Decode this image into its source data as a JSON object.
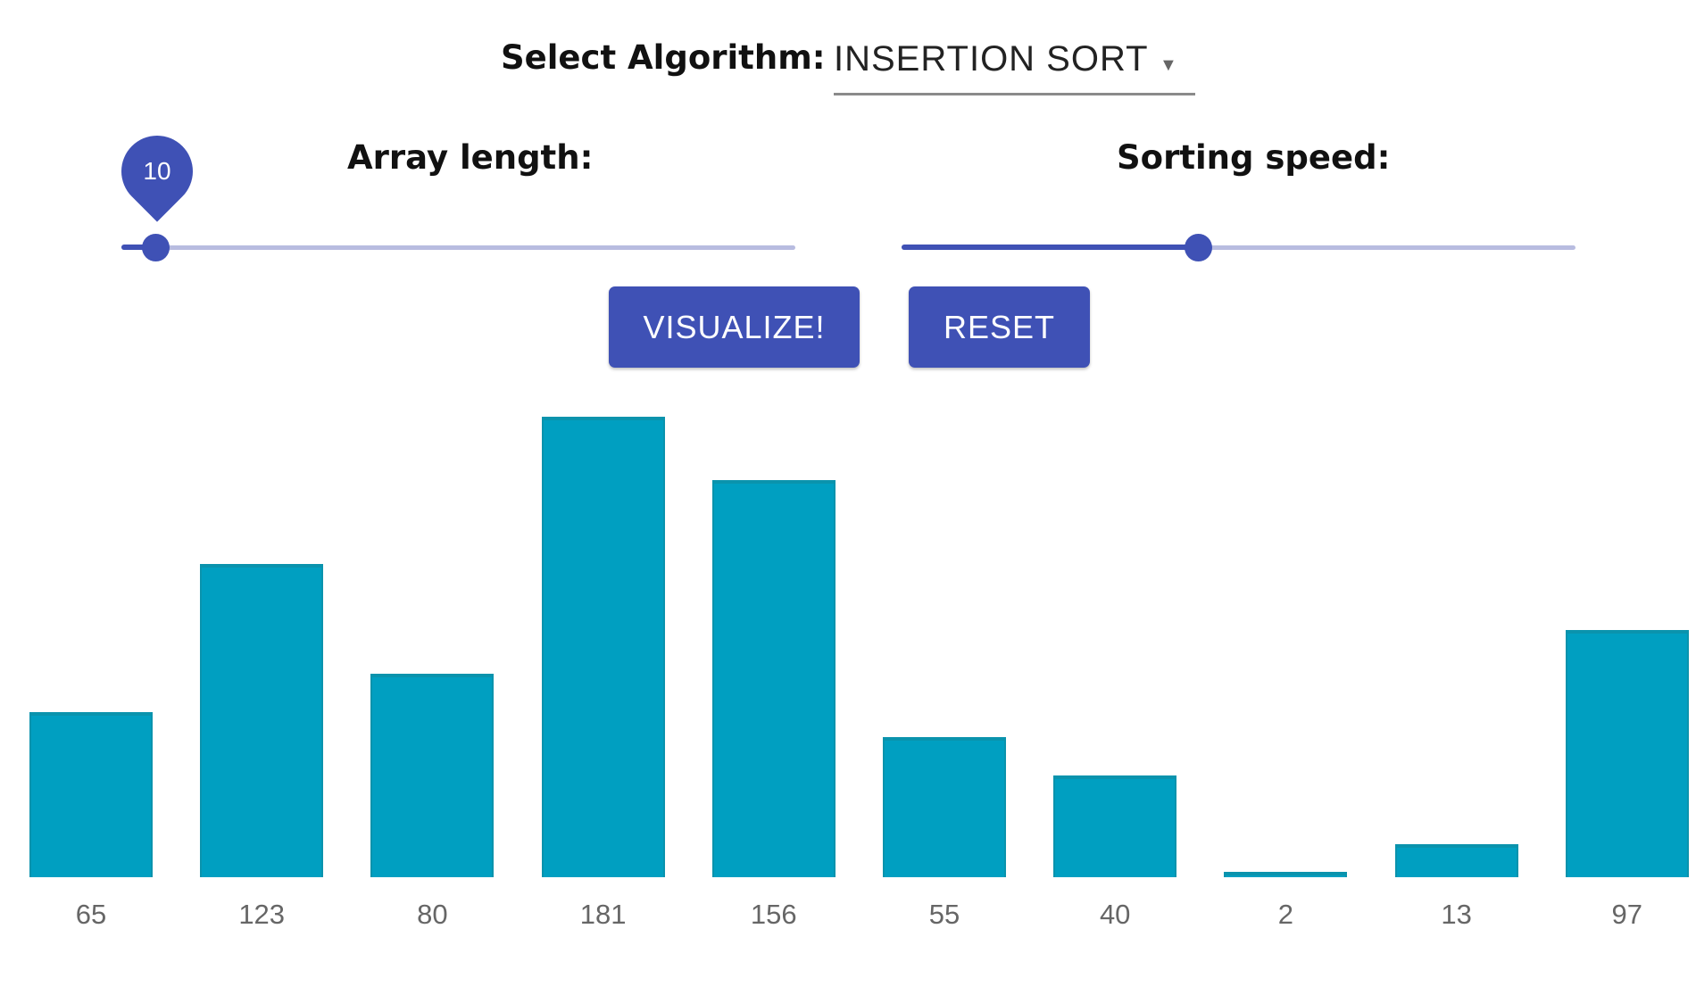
{
  "controls": {
    "algorithm_label": "Select Algorithm:",
    "algorithm_value": "INSERTION SORT",
    "array_length_label": "Array length:",
    "array_length_value": "10",
    "array_length_fraction": 0.05,
    "sorting_speed_label": "Sorting speed:",
    "sorting_speed_fraction": 0.44,
    "visualize_label": "VISUALIZE!",
    "reset_label": "RESET"
  },
  "icons": {
    "dropdown": "chevron-down-icon"
  },
  "colors": {
    "primary": "#3f51b5",
    "bar": "#009fc1"
  },
  "chart_data": {
    "type": "bar",
    "categories": [
      "65",
      "123",
      "80",
      "181",
      "156",
      "55",
      "40",
      "2",
      "13",
      "97"
    ],
    "values": [
      65,
      123,
      80,
      181,
      156,
      55,
      40,
      2,
      13,
      97
    ]
  }
}
